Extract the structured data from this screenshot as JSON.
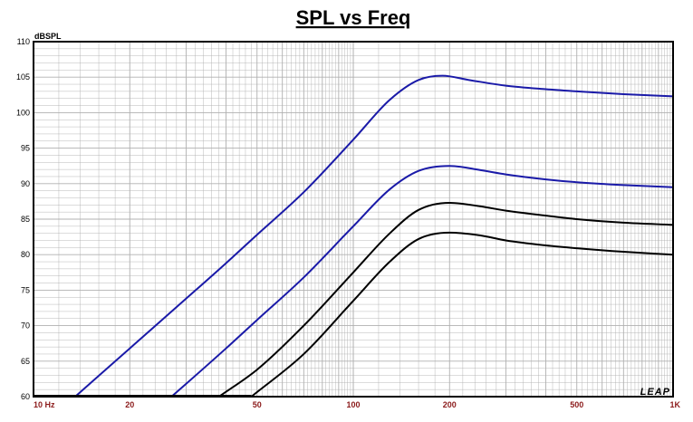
{
  "chart_data": {
    "type": "line",
    "title": "SPL vs Freq",
    "ylabel": "dBSPL",
    "xlabel": "",
    "xscale": "log",
    "xlim": [
      10,
      1000
    ],
    "ylim": [
      60,
      110
    ],
    "grid": true,
    "x_tick_labels": [
      "10 Hz",
      "20",
      "50",
      "100",
      "200",
      "500",
      "1K"
    ],
    "x_tick_values": [
      10,
      20,
      50,
      100,
      200,
      500,
      1000
    ],
    "y_tick_values": [
      60,
      65,
      70,
      75,
      80,
      85,
      90,
      95,
      100,
      105,
      110
    ],
    "series": [
      {
        "color": "#1a1aa8",
        "x": [
          13.5,
          20,
          30,
          40,
          50,
          70,
          100,
          130,
          160,
          190,
          230,
          300,
          400,
          500,
          700,
          1000
        ],
        "y": [
          60.0,
          66.8,
          73.8,
          78.8,
          82.8,
          88.8,
          96.2,
          101.8,
          104.6,
          105.2,
          104.6,
          103.8,
          103.3,
          103.0,
          102.6,
          102.3
        ]
      },
      {
        "color": "#1a1aa8",
        "x": [
          27,
          30,
          40,
          50,
          70,
          100,
          130,
          160,
          200,
          250,
          300,
          400,
          500,
          700,
          1000
        ],
        "y": [
          60.0,
          61.8,
          66.8,
          70.8,
          76.8,
          84.0,
          89.2,
          91.8,
          92.5,
          91.9,
          91.3,
          90.6,
          90.2,
          89.8,
          89.5
        ]
      },
      {
        "color": "#000000",
        "x": [
          38,
          50,
          70,
          100,
          130,
          160,
          200,
          250,
          300,
          400,
          500,
          700,
          1000
        ],
        "y": [
          60.0,
          63.8,
          70.0,
          77.5,
          83.0,
          86.3,
          87.3,
          86.8,
          86.2,
          85.5,
          85.0,
          84.5,
          84.2
        ]
      },
      {
        "color": "#000000",
        "x": [
          48,
          70,
          100,
          130,
          160,
          200,
          250,
          300,
          400,
          500,
          700,
          1000
        ],
        "y": [
          60.0,
          66.0,
          73.5,
          79.0,
          82.2,
          83.1,
          82.7,
          82.0,
          81.3,
          80.9,
          80.4,
          80.0
        ]
      }
    ]
  },
  "logo_text": "LEAP",
  "colors": {
    "axis": "#000000",
    "grid": "#b0b0b0",
    "x_tick_label": "#8b1a1a"
  }
}
